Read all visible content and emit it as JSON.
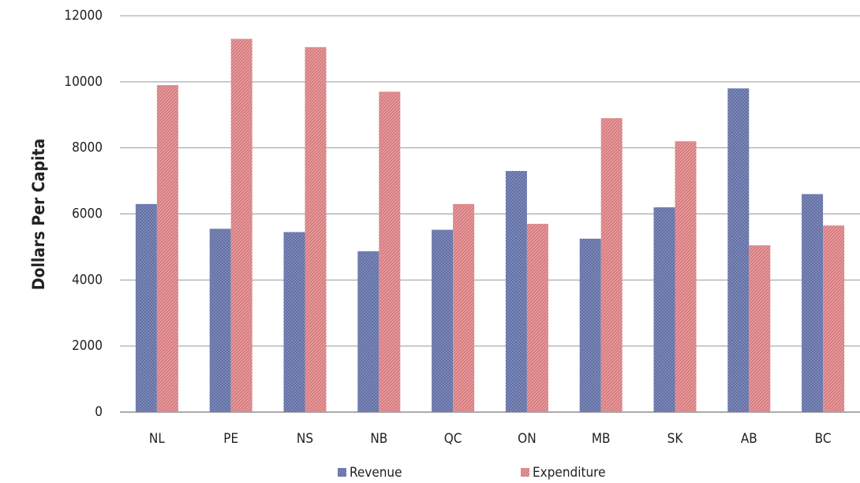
{
  "chart_data": {
    "type": "bar",
    "ylabel": "Dollars Per Capita",
    "categories": [
      "NL",
      "PE",
      "NS",
      "NB",
      "QC",
      "ON",
      "MB",
      "SK",
      "AB",
      "BC"
    ],
    "series": [
      {
        "name": "Revenue",
        "color": "#7f8cbf",
        "values": [
          6300,
          5550,
          5450,
          4870,
          5520,
          7300,
          5250,
          6200,
          9800,
          6600
        ]
      },
      {
        "name": "Expenditure",
        "color": "#e79a9c",
        "values": [
          9900,
          11300,
          11050,
          9700,
          6300,
          5700,
          8900,
          8200,
          5050,
          5650
        ]
      }
    ],
    "ylim": [
      0,
      12000
    ],
    "yticks": [
      0,
      2000,
      4000,
      6000,
      8000,
      10000,
      12000
    ],
    "grid": true,
    "legend": "bottom"
  }
}
